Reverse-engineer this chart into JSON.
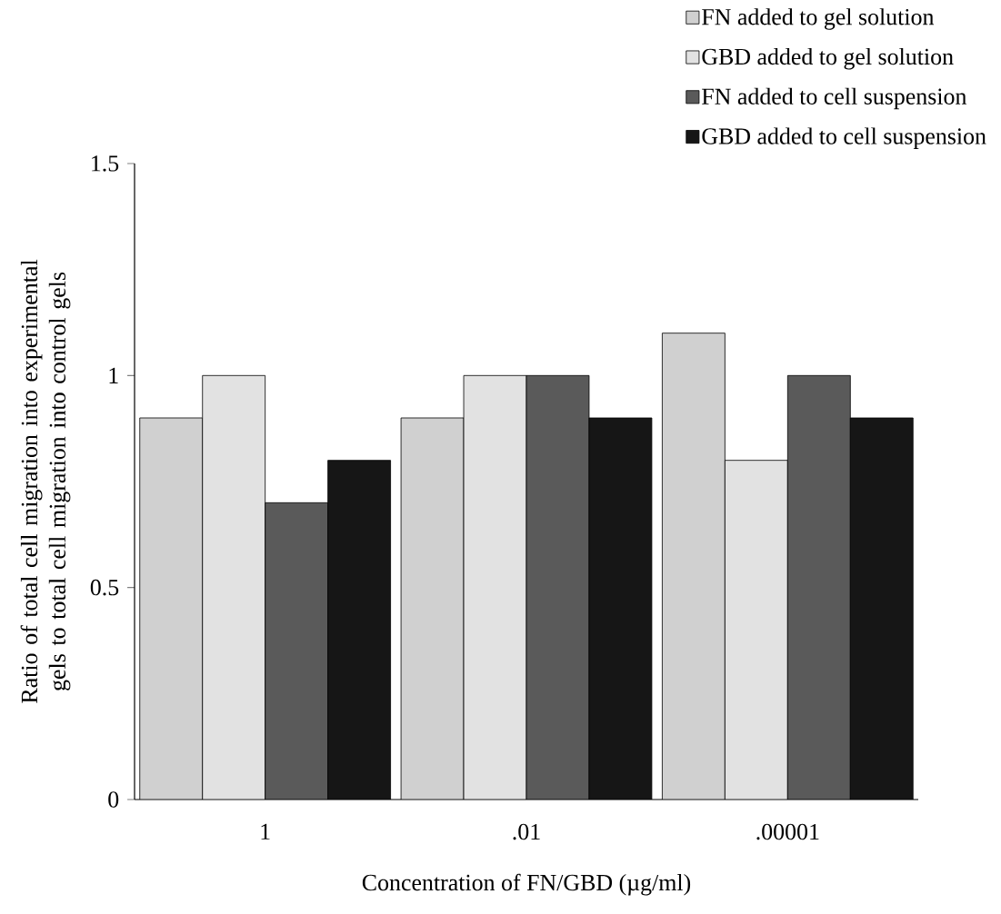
{
  "chart_data": {
    "type": "bar",
    "xlabel": "Concentration of FN/GBD (µg/ml)",
    "ylabel": "Ratio of total cell migration into experimental gels to total cell migration into control gels",
    "categories": [
      "1",
      ".01",
      ".00001"
    ],
    "series": [
      {
        "name": "FN added to gel solution",
        "color": "#d0d0d0",
        "values": [
          0.9,
          0.9,
          1.1
        ]
      },
      {
        "name": "GBD added to gel solution",
        "color": "#e2e2e2",
        "values": [
          1.0,
          1.0,
          0.8
        ]
      },
      {
        "name": "FN added to cell suspension",
        "color": "#5a5a5a",
        "values": [
          0.7,
          1.0,
          1.0
        ]
      },
      {
        "name": "GBD added to cell suspension",
        "color": "#161616",
        "values": [
          0.8,
          0.9,
          0.9
        ]
      }
    ],
    "ylim": [
      0,
      1.5
    ],
    "yticks": [
      0,
      0.5,
      1,
      1.5
    ],
    "legend": "top right"
  }
}
